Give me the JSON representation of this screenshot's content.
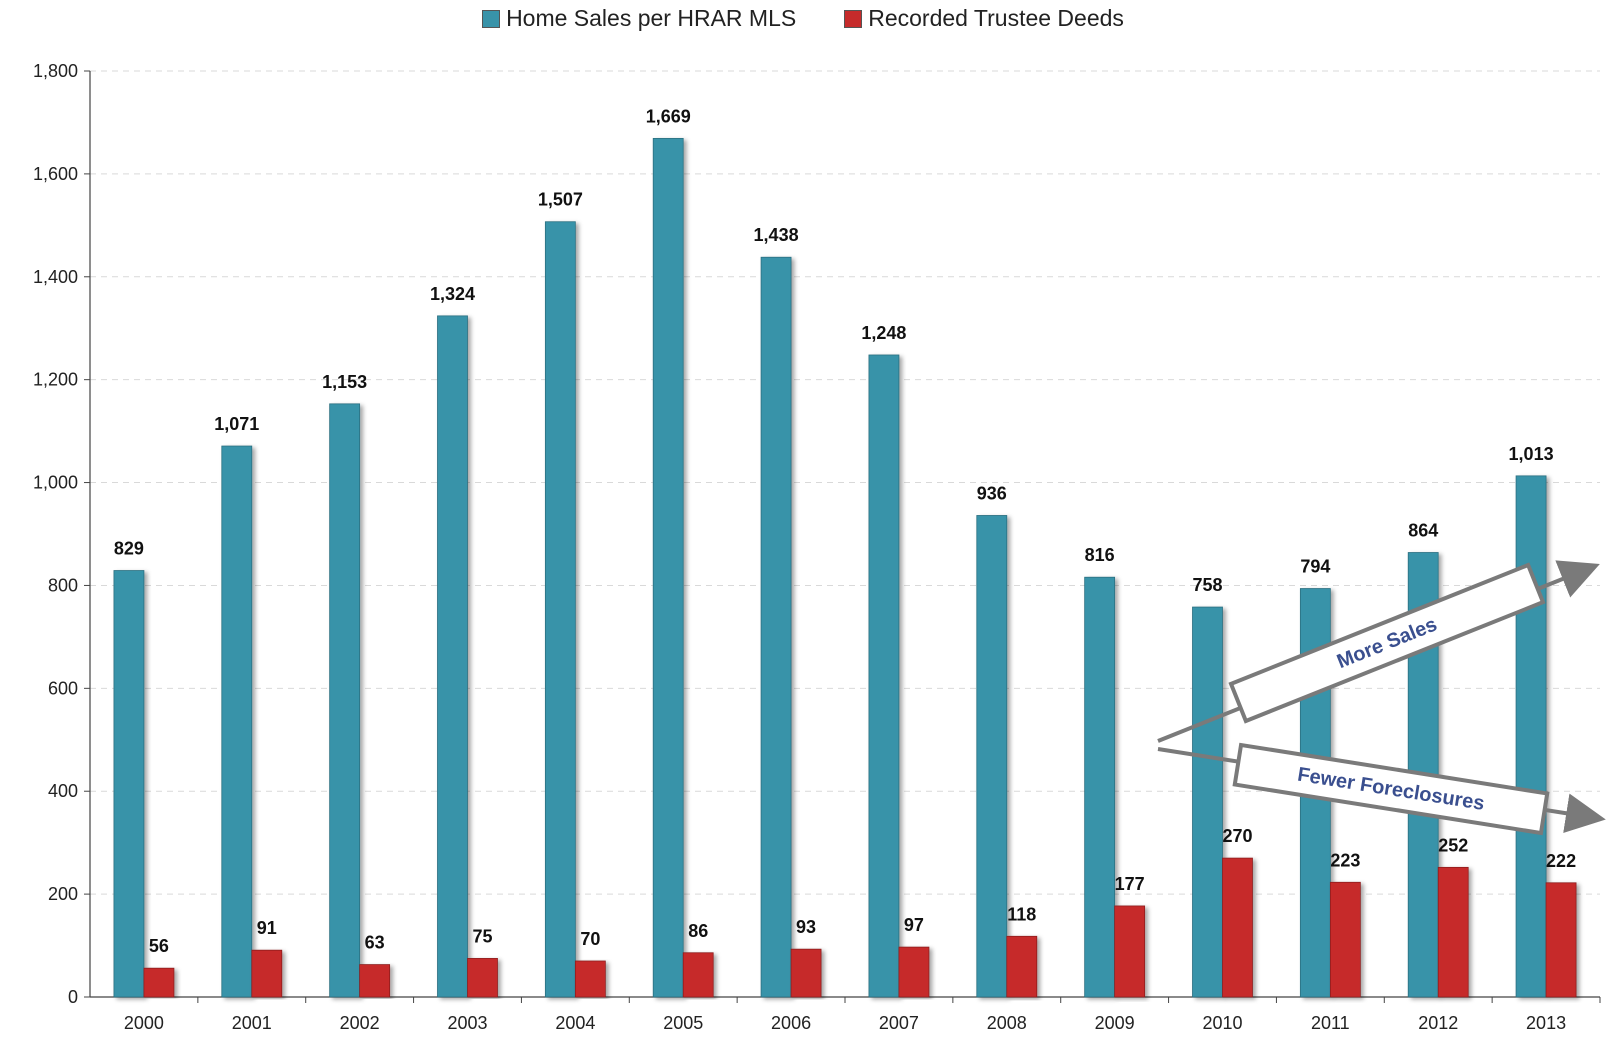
{
  "legend": {
    "sales_label": "Home Sales per HRAR MLS",
    "deeds_label": "Recorded Trustee Deeds"
  },
  "colors": {
    "sales": "#3893a9",
    "deeds": "#c62b2b",
    "arrow": "#7a7a7a",
    "annotation_text": "#3a4f8f"
  },
  "annotations": {
    "up_label": "More Sales",
    "down_label": "Fewer Foreclosures"
  },
  "chart_data": {
    "type": "bar",
    "categories": [
      "2000",
      "2001",
      "2002",
      "2003",
      "2004",
      "2005",
      "2006",
      "2007",
      "2008",
      "2009",
      "2010",
      "2011",
      "2012",
      "2013"
    ],
    "series": [
      {
        "name": "Home Sales per HRAR MLS",
        "values": [
          829,
          1071,
          1153,
          1324,
          1507,
          1669,
          1438,
          1248,
          936,
          816,
          758,
          794,
          864,
          1013
        ]
      },
      {
        "name": "Recorded Trustee Deeds",
        "values": [
          56,
          91,
          63,
          75,
          70,
          86,
          93,
          97,
          118,
          177,
          270,
          223,
          252,
          222
        ]
      }
    ],
    "data_labels": {
      "sales": [
        "829",
        "1,071",
        "1,153",
        "1,324",
        "1,507",
        "1,669",
        "1,438",
        "1,248",
        "936",
        "816",
        "758",
        "794",
        "864",
        "1,013"
      ],
      "deeds": [
        "56",
        "91",
        "63",
        "75",
        "70",
        "86",
        "93",
        "97",
        "118",
        "177",
        "270",
        "223",
        "252",
        "222"
      ]
    },
    "ylim": [
      0,
      1800
    ],
    "yticks": [
      0,
      200,
      400,
      600,
      800,
      1000,
      1200,
      1400,
      1600,
      1800
    ],
    "ytick_labels": [
      "0",
      "200",
      "400",
      "600",
      "800",
      "1,000",
      "1,200",
      "1,400",
      "1,600",
      "1,800"
    ],
    "grid": true,
    "legend_position": "top-center"
  }
}
